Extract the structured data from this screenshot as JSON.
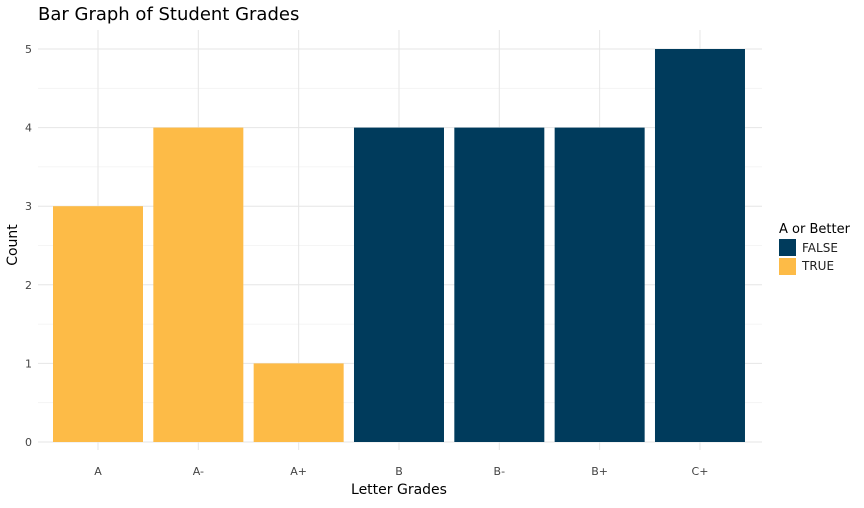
{
  "chart_data": {
    "type": "bar",
    "title": "Bar Graph of Student Grades",
    "xlabel": "Letter Grades",
    "ylabel": "Count",
    "categories": [
      "A",
      "A-",
      "A+",
      "B",
      "B-",
      "B+",
      "C+"
    ],
    "values": [
      3,
      4,
      1,
      4,
      4,
      4,
      5
    ],
    "group": [
      "TRUE",
      "TRUE",
      "TRUE",
      "FALSE",
      "FALSE",
      "FALSE",
      "FALSE"
    ],
    "ylim": [
      0,
      5
    ],
    "yticks": [
      0,
      1,
      2,
      3,
      4,
      5
    ],
    "grid": true,
    "legend": {
      "title": "A or Better",
      "placement": "right",
      "entries": [
        {
          "label": "FALSE",
          "color": "#003b5c"
        },
        {
          "label": "TRUE",
          "color": "#fdbb47"
        }
      ]
    }
  }
}
